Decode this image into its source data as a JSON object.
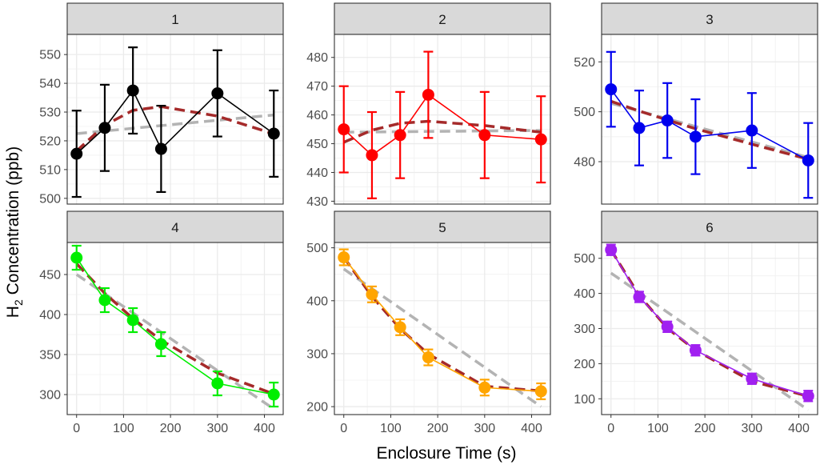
{
  "chart_data": {
    "type": "line",
    "xlabel": "Enclosure Time  (s)",
    "ylabel": {
      "prefix": "H",
      "subscript": "2",
      "suffix": " Concentration  (ppb)"
    },
    "x": [
      0,
      60,
      120,
      180,
      300,
      420
    ],
    "xlim": [
      -20,
      440
    ],
    "xticks": [
      0,
      100,
      200,
      300,
      400
    ],
    "grid": true,
    "legend": "none",
    "fit_colors": {
      "quadratic": "#a52a2a",
      "linear": "#b3b3b3"
    },
    "panels": [
      {
        "label": "1",
        "color": "#000000",
        "values": [
          515.5,
          524.5,
          537.5,
          517.2,
          536.5,
          522.5
        ],
        "error": 15,
        "ylim": [
          498,
          557
        ],
        "yticks": [
          500,
          510,
          520,
          530,
          540,
          550
        ],
        "quadratic_fit": [
          516.5,
          525.4,
          530.6,
          531.9,
          528.6,
          522.4
        ],
        "linear_fit": [
          522.5,
          529.0
        ]
      },
      {
        "label": "2",
        "color": "#ff0000",
        "values": [
          455,
          446,
          453,
          467,
          453,
          451.5
        ],
        "error": 15,
        "ylim": [
          429,
          488
        ],
        "yticks": [
          430,
          440,
          450,
          460,
          470,
          480
        ],
        "quadratic_fit": [
          450.5,
          454.7,
          457.1,
          457.8,
          456.3,
          454.0
        ],
        "linear_fit": [
          454.0,
          454.6
        ]
      },
      {
        "label": "3",
        "color": "#0000ee",
        "values": [
          509,
          493.5,
          496.5,
          490,
          492.5,
          480.5
        ],
        "error": 15,
        "ylim": [
          463,
          531
        ],
        "yticks": [
          480,
          500,
          520
        ],
        "quadratic_fit": [
          504.2,
          500.3,
          496.7,
          493.2,
          487.0,
          481.0
        ],
        "linear_fit": [
          503.4,
          481.7
        ]
      },
      {
        "label": "4",
        "color": "#00ee00",
        "values": [
          471,
          418,
          393,
          363,
          314,
          300
        ],
        "error": 15,
        "ylim": [
          275,
          490
        ],
        "yticks": [
          300,
          350,
          400,
          450
        ],
        "quadratic_fit": [
          463.5,
          426.6,
          395.0,
          367.9,
          326.8,
          300.8
        ],
        "linear_fit": [
          450.0,
          282.0
        ]
      },
      {
        "label": "5",
        "color": "#ffa500",
        "values": [
          482,
          412,
          350,
          293,
          236,
          229
        ],
        "error": 15,
        "ylim": [
          185,
          510
        ],
        "yticks": [
          200,
          300,
          400,
          500
        ],
        "quadratic_fit": [
          482.1,
          408.2,
          347.3,
          299.4,
          238.5,
          229.6
        ],
        "linear_fit": [
          460.0,
          200.0
        ]
      },
      {
        "label": "6",
        "color": "#a020f0",
        "values": [
          524,
          390,
          305,
          238,
          157,
          108
        ],
        "error": 15,
        "ylim": [
          55,
          545
        ],
        "yticks": [
          100,
          200,
          300,
          400,
          500
        ],
        "quadratic_fit": [
          524.2,
          394.3,
          301.0,
          238.4,
          149.8,
          107.3
        ],
        "linear_fit": [
          458.0,
          68.0
        ]
      }
    ]
  }
}
